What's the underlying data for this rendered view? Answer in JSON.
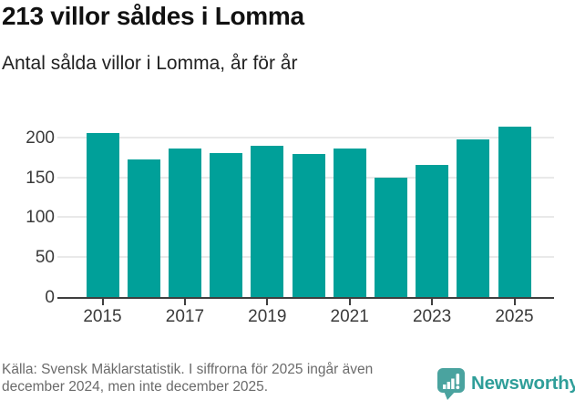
{
  "title": "213 villor såldes i Lomma",
  "subtitle": "Antal sålda villor i Lomma, år för år",
  "chart_data": {
    "type": "bar",
    "categories": [
      "2015",
      "2016",
      "2017",
      "2018",
      "2019",
      "2020",
      "2021",
      "2022",
      "2023",
      "2024",
      "2025"
    ],
    "values": [
      205,
      172,
      186,
      180,
      189,
      179,
      186,
      150,
      165,
      198,
      213
    ],
    "title": "213 villor såldes i Lomma",
    "subtitle": "Antal sålda villor i Lomma, år för år",
    "xlabel": "",
    "ylabel": "",
    "yticks": [
      0,
      50,
      100,
      150,
      200
    ],
    "ylim": [
      0,
      221
    ],
    "x_tick_labels": [
      "2015",
      "2017",
      "2019",
      "2021",
      "2023",
      "2025"
    ],
    "grid": true,
    "legend": false,
    "bar_color": "#00a099"
  },
  "footer": {
    "source_line1": "Källa: Svensk Mäklarstatistik. I siffrorna för 2025 ingår även",
    "source_line2": "december 2024, men inte december 2025.",
    "brand": "Newsworthy"
  },
  "colors": {
    "bar": "#00a099",
    "axis": "#3f3f3f",
    "gridline": "#e9e9e9",
    "tick_label": "#3a3a3a",
    "title": "#111111",
    "subtitle": "#222222",
    "source_text": "#6b6b6b",
    "brand_text": "#2f9e99",
    "brand_icon": "#4aa39f",
    "background": "#ffffff"
  }
}
